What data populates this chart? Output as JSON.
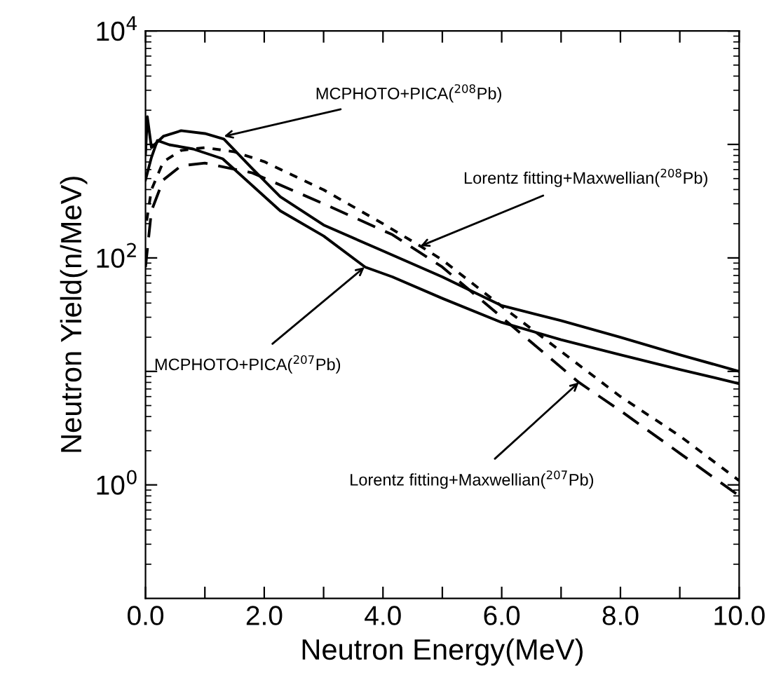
{
  "chart_data": {
    "type": "line",
    "xlabel": "Neutron Energy(MeV)",
    "ylabel": "Neutron Yield(n/MeV)",
    "log": "y",
    "xlim": [
      0,
      10
    ],
    "ylim": [
      0.1,
      10000
    ],
    "xticks": [
      {
        "value": 0,
        "label": "0.0"
      },
      {
        "value": 1,
        "label": null
      },
      {
        "value": 2,
        "label": "2.0"
      },
      {
        "value": 3,
        "label": null
      },
      {
        "value": 4,
        "label": "4.0"
      },
      {
        "value": 5,
        "label": null
      },
      {
        "value": 6,
        "label": "6.0"
      },
      {
        "value": 7,
        "label": null
      },
      {
        "value": 8,
        "label": "8.0"
      },
      {
        "value": 9,
        "label": null
      },
      {
        "value": 10,
        "label": "10.0"
      }
    ],
    "yticks": [
      {
        "value": 1,
        "label": "10$^{0}$"
      },
      {
        "value": 10,
        "label": null
      },
      {
        "value": 100,
        "label": "10$^{2}$"
      },
      {
        "value": 1000,
        "label": null
      },
      {
        "value": 10000,
        "label": "10$^{4}$"
      }
    ],
    "grid": false,
    "legend": false,
    "series": [
      {
        "color": "#000000",
        "line_style": "solid",
        "x": [
          0.0,
          0.03,
          0.1,
          0.3,
          0.6,
          1.0,
          1.32,
          1.8,
          2.27,
          3.0,
          3.92,
          5.0,
          6.0,
          7.0,
          8.0,
          9.0,
          10.0
        ],
        "values": [
          813,
          1757,
          938,
          1178,
          1321,
          1247,
          1113,
          611,
          346,
          195,
          120,
          68,
          38,
          28,
          20,
          14,
          10
        ]
      },
      {
        "color": "#000000",
        "line_style": "solid",
        "x": [
          0.0,
          0.1,
          0.2,
          0.4,
          0.8,
          1.3,
          2.27,
          3.0,
          3.7,
          4.16,
          5.0,
          6.0,
          7.0,
          8.0,
          9.0,
          10.0
        ],
        "values": [
          487,
          768,
          1082,
          993,
          912,
          747,
          260,
          156,
          83,
          68,
          44,
          27,
          19,
          14,
          10.4,
          7.8
        ]
      },
      {
        "color": "#000000",
        "line_style": "dotted",
        "x": [
          0.02,
          0.1,
          0.3,
          0.6,
          1.0,
          1.5,
          2.0,
          3.0,
          4.0,
          4.63,
          5.0,
          6.0,
          7.0,
          8.0,
          9.0,
          10.0
        ],
        "values": [
          213,
          399,
          705,
          885,
          938,
          860,
          705,
          398,
          200,
          127,
          96,
          37.5,
          15,
          6.0,
          2.7,
          1.09
        ]
      },
      {
        "color": "#000000",
        "line_style": "dashed",
        "x": [
          0.0,
          0.1,
          0.3,
          0.6,
          1.0,
          1.8,
          3.0,
          4.16,
          5.0,
          6.0,
          7.3,
          8.0,
          9.0,
          10.0
        ],
        "values": [
          83,
          260,
          487,
          648,
          685,
          561,
          300,
          160,
          83,
          30,
          8.0,
          4.5,
          1.9,
          0.8
        ]
      }
    ],
    "annotations": [
      {
        "text": "MCPHOTO+PICA($^{208}$Pb)",
        "x": 1.32,
        "y": 1178
      },
      {
        "text": "Lorentz fitting+Maxwellian($^{208}$Pb)",
        "x": 4.63,
        "y": 127
      },
      {
        "text": "MCPHOTO+PICA($^{207}$Pb)",
        "x": 3.69,
        "y": 83
      },
      {
        "text": "Lorentz fitting+Maxwellian($^{207}$Pb)",
        "x": 7.3,
        "y": 8.0
      }
    ]
  }
}
